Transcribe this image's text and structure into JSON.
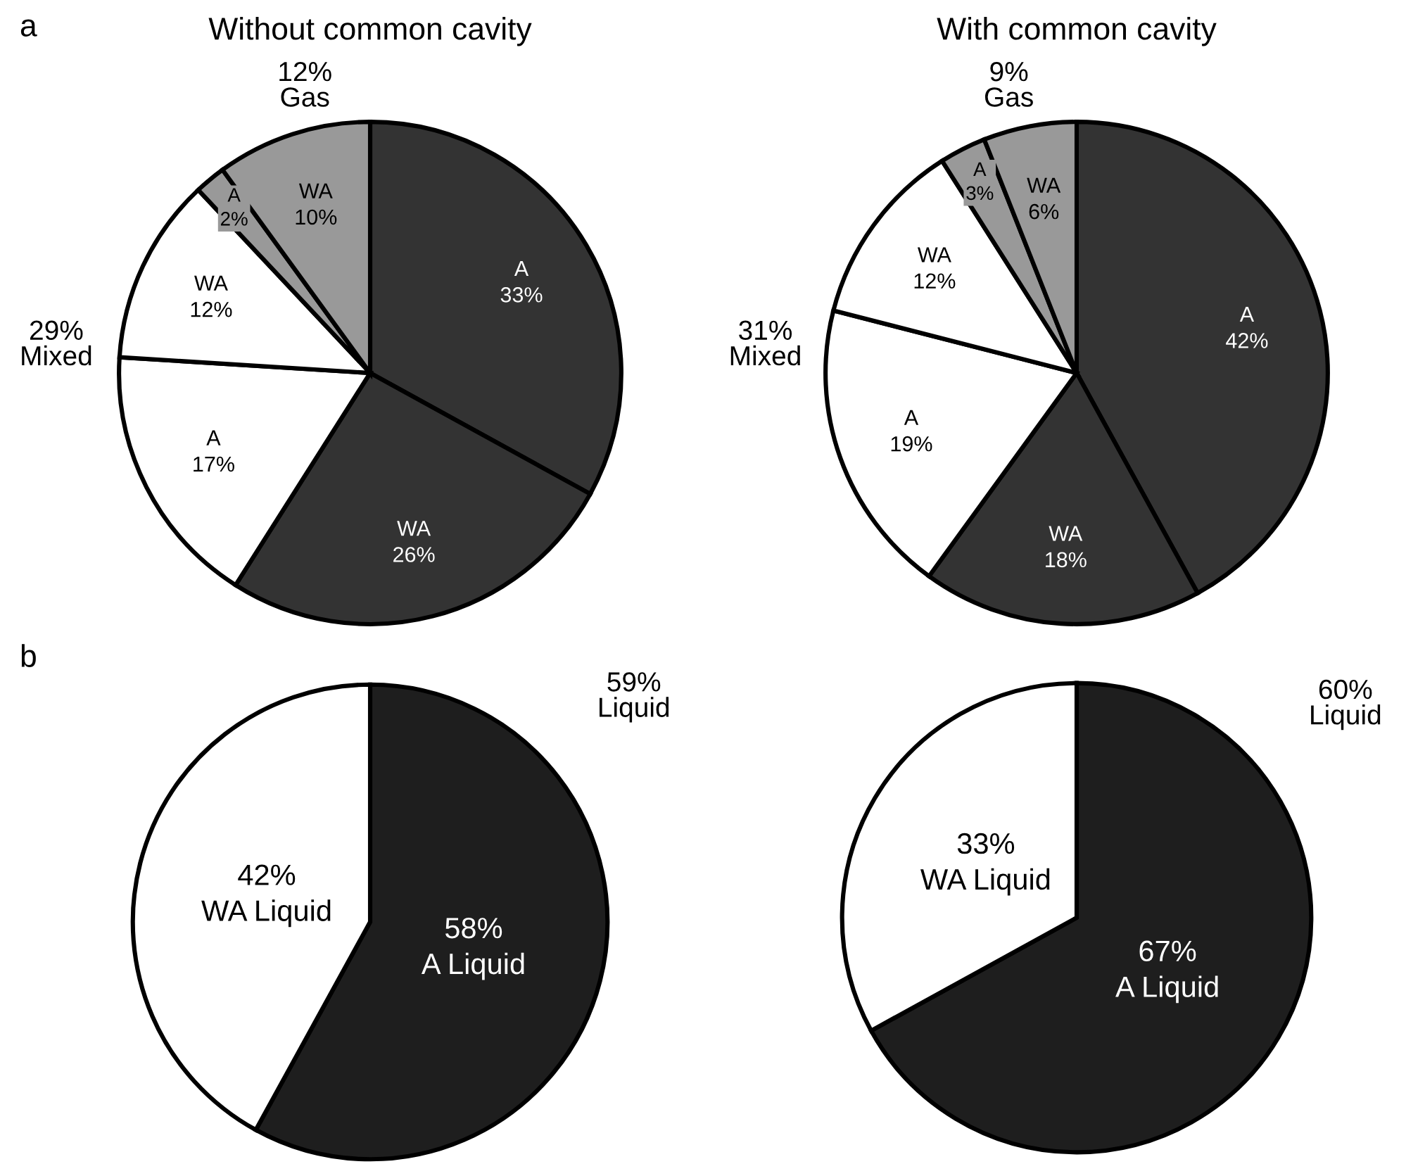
{
  "chart_data": [
    {
      "type": "pie",
      "title": "Without common cavity",
      "categories": [
        "A",
        "WA",
        "A",
        "WA",
        "A",
        "WA"
      ],
      "values": [
        33,
        26,
        17,
        12,
        2,
        10
      ],
      "value_labels": [
        "33%",
        "26%",
        "17%",
        "12%",
        "2%",
        "10%"
      ],
      "colors": [
        "#333333",
        "#333333",
        "#ffffff",
        "#ffffff",
        "#999999",
        "#999999"
      ],
      "annotations": [
        "a",
        "12%\nGas",
        "29%\nMixed",
        "59%\nLiquid"
      ]
    },
    {
      "type": "pie",
      "title": "With common cavity",
      "categories": [
        "A",
        "WA",
        "A",
        "WA",
        "A",
        "WA"
      ],
      "values": [
        42,
        18,
        19,
        12,
        3,
        6
      ],
      "value_labels": [
        "42%",
        "18%",
        "19%",
        "12%",
        "3%",
        "6%"
      ],
      "colors": [
        "#333333",
        "#333333",
        "#ffffff",
        "#ffffff",
        "#999999",
        "#999999"
      ],
      "annotations": [
        "9%\nGas",
        "31%\nMixed",
        "60%\nLiquid"
      ]
    },
    {
      "type": "pie",
      "categories": [
        "A Liquid",
        "WA Liquid"
      ],
      "values": [
        58,
        42
      ],
      "value_labels": [
        "58%",
        "42%"
      ],
      "colors": [
        "#1e1e1e",
        "#ffffff"
      ],
      "annotations": [
        "b"
      ]
    },
    {
      "type": "pie",
      "categories": [
        "A Liquid",
        "WA Liquid"
      ],
      "values": [
        67,
        33
      ],
      "value_labels": [
        "67%",
        "33%"
      ],
      "colors": [
        "#1e1e1e",
        "#ffffff"
      ]
    }
  ]
}
